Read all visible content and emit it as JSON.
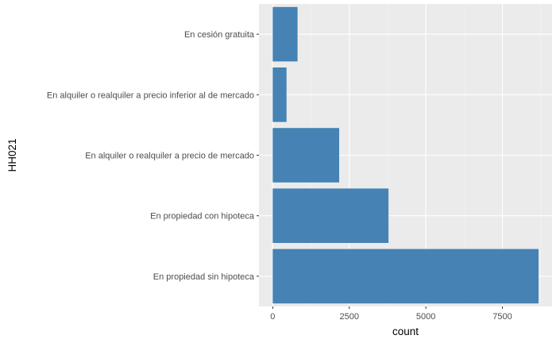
{
  "chart_data": {
    "type": "bar",
    "orientation": "horizontal",
    "xlabel": "count",
    "ylabel": "HH021",
    "categories": [
      "En propiedad sin hipoteca",
      "En propiedad con hipoteca",
      "En alquiler o realquiler a precio de mercado",
      "En alquiler o realquiler a precio inferior al de mercado",
      "En cesión gratuita"
    ],
    "values": [
      8680,
      3780,
      2170,
      450,
      810
    ],
    "xlim": [
      -450,
      9120
    ],
    "xticks": [
      0,
      2500,
      5000,
      7500
    ],
    "xtick_labels": [
      "0",
      "2500",
      "5000",
      "7500"
    ],
    "grid": true,
    "colors": {
      "bar": "#4682B4",
      "panel": "#EBEBEB",
      "grid_major": "#FFFFFF",
      "grid_minor": "#F5F5F5"
    }
  }
}
